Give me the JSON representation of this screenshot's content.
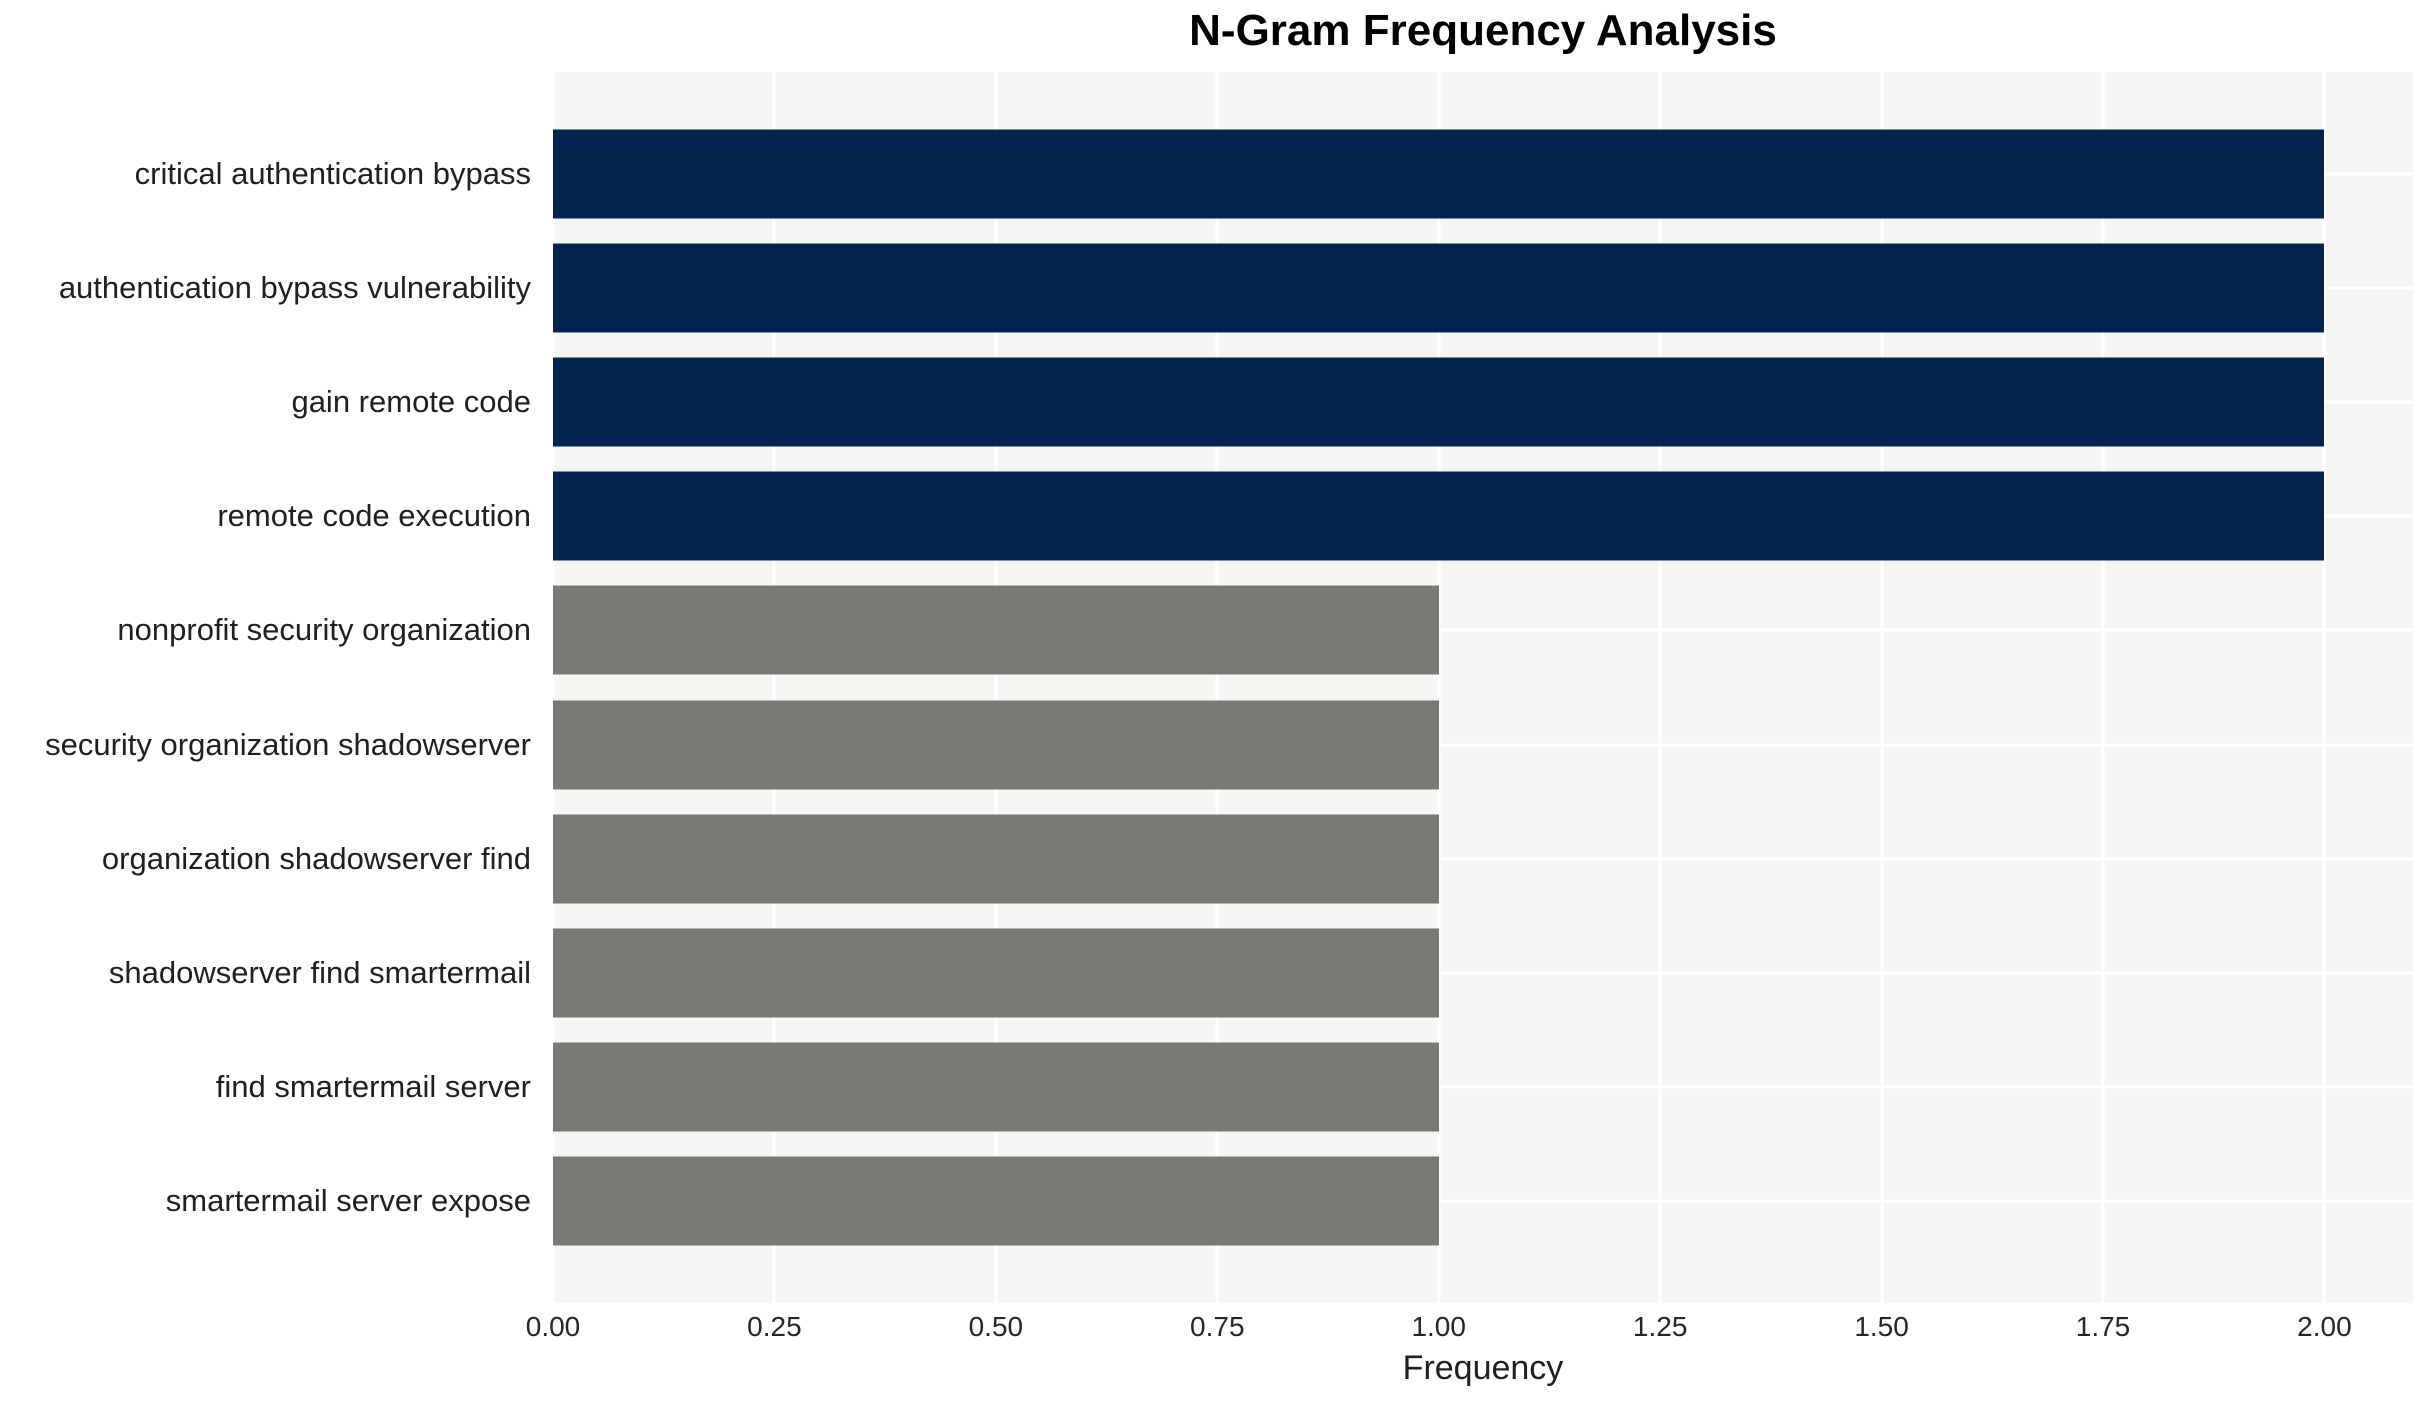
{
  "chart_data": {
    "type": "bar",
    "orientation": "horizontal",
    "title": "N-Gram Frequency Analysis",
    "xlabel": "Frequency",
    "ylabel": "",
    "categories": [
      "critical authentication bypass",
      "authentication bypass vulnerability",
      "gain remote code",
      "remote code execution",
      "nonprofit security organization",
      "security organization shadowserver",
      "organization shadowserver find",
      "shadowserver find smartermail",
      "find smartermail server",
      "smartermail server expose"
    ],
    "values": [
      2,
      2,
      2,
      2,
      1,
      1,
      1,
      1,
      1,
      1
    ],
    "bar_colors": [
      "#02234d",
      "#02234d",
      "#02234d",
      "#02234d",
      "#7a7973",
      "#7a7973",
      "#7a7973",
      "#7a7973",
      "#7a7973",
      "#7a7973"
    ],
    "xlim": [
      0,
      2.1
    ],
    "xticks": [
      0,
      0.25,
      0.5,
      0.75,
      1.0,
      1.25,
      1.5,
      1.75,
      2.0
    ],
    "xtick_labels": [
      "0.00",
      "0.25",
      "0.50",
      "0.75",
      "1.00",
      "1.25",
      "1.50",
      "1.75",
      "2.00"
    ],
    "grid": "white gridlines (vertical at ticks, horizontal at bar centers) on light gray panel",
    "legend": "none",
    "colors": {
      "frequency_2_bar": "#02234d",
      "frequency_1_bar": "#7a7973",
      "panel_background": "#f5f5f4",
      "gridline": "#ffffff",
      "figure_background": "#ffffff",
      "tick_text": "#262626",
      "label_text": "#1f1f1f",
      "title_text": "#000000"
    }
  }
}
